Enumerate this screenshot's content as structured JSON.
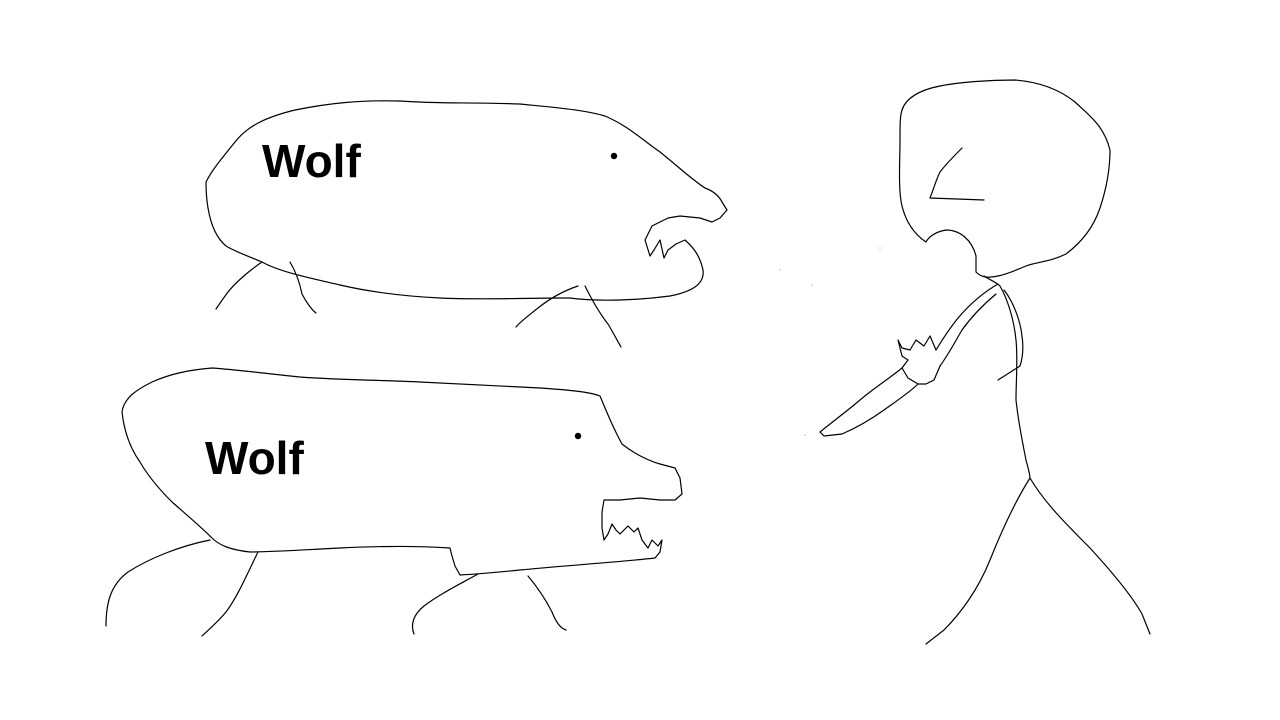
{
  "labels": {
    "wolf_top": "Wolf",
    "wolf_bottom": "Wolf"
  },
  "colors": {
    "background": "#ffffff",
    "ink": "#000000"
  }
}
